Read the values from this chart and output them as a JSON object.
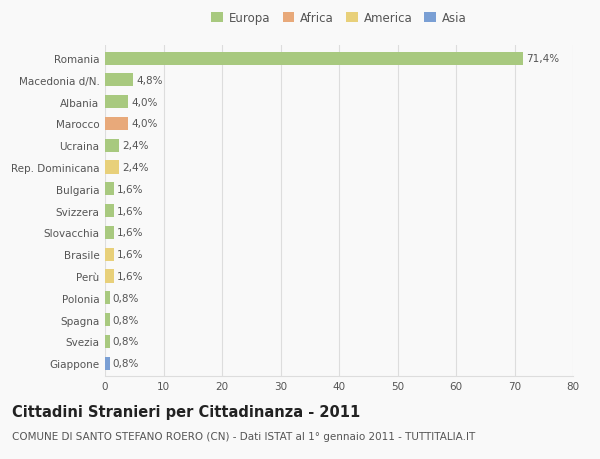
{
  "countries": [
    "Romania",
    "Macedonia d/N.",
    "Albania",
    "Marocco",
    "Ucraina",
    "Rep. Dominicana",
    "Bulgaria",
    "Svizzera",
    "Slovacchia",
    "Brasile",
    "Perù",
    "Polonia",
    "Spagna",
    "Svezia",
    "Giappone"
  ],
  "values": [
    71.4,
    4.8,
    4.0,
    4.0,
    2.4,
    2.4,
    1.6,
    1.6,
    1.6,
    1.6,
    1.6,
    0.8,
    0.8,
    0.8,
    0.8
  ],
  "labels": [
    "71,4%",
    "4,8%",
    "4,0%",
    "4,0%",
    "2,4%",
    "2,4%",
    "1,6%",
    "1,6%",
    "1,6%",
    "1,6%",
    "1,6%",
    "0,8%",
    "0,8%",
    "0,8%",
    "0,8%"
  ],
  "continents": [
    "Europa",
    "Europa",
    "Europa",
    "Africa",
    "Europa",
    "America",
    "Europa",
    "Europa",
    "Europa",
    "America",
    "America",
    "Europa",
    "Europa",
    "Europa",
    "Asia"
  ],
  "continent_colors": {
    "Europa": "#a8c97f",
    "Africa": "#e8a97a",
    "America": "#e8d07a",
    "Asia": "#7a9fd4"
  },
  "legend_order": [
    "Europa",
    "Africa",
    "America",
    "Asia"
  ],
  "xlim": [
    0,
    80
  ],
  "xticks": [
    0,
    10,
    20,
    30,
    40,
    50,
    60,
    70,
    80
  ],
  "title": "Cittadini Stranieri per Cittadinanza - 2011",
  "subtitle": "COMUNE DI SANTO STEFANO ROERO (CN) - Dati ISTAT al 1° gennaio 2011 - TUTTITALIA.IT",
  "background_color": "#f9f9f9",
  "grid_color": "#dddddd",
  "bar_height": 0.6,
  "title_fontsize": 10.5,
  "subtitle_fontsize": 7.5,
  "label_fontsize": 7.5,
  "tick_fontsize": 7.5,
  "legend_fontsize": 8.5
}
